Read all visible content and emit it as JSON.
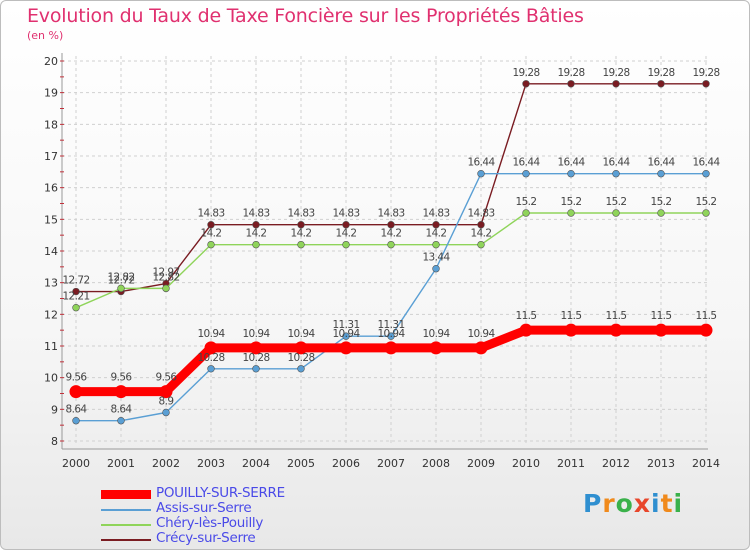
{
  "header": {
    "title": "Evolution du Taux de Taxe Foncière sur les Propriétés Bâties",
    "unit": "(en %)"
  },
  "logo": {
    "letters": [
      "P",
      "r",
      "o",
      "x",
      "i",
      "t",
      "i"
    ],
    "colors": [
      "#2f8fd0",
      "#f08a1c",
      "#3ab14a",
      "#e8462b",
      "#2f8fd0",
      "#f08a1c",
      "#3ab14a"
    ]
  },
  "chart_data": {
    "type": "line",
    "title": "Evolution du Taux de Taxe Foncière sur les Propriétés Bâties",
    "ylabel": "(en %)",
    "xlabel": "",
    "ylim": [
      8,
      20
    ],
    "yticks": [
      8,
      9,
      10,
      11,
      12,
      13,
      14,
      15,
      16,
      17,
      18,
      19,
      20
    ],
    "x": [
      "2000",
      "2001",
      "2002",
      "2003",
      "2004",
      "2005",
      "2006",
      "2007",
      "2008",
      "2009",
      "2010",
      "2011",
      "2012",
      "2013",
      "2014"
    ],
    "series": [
      {
        "name": "Crécy-sur-Serre",
        "color": "#7a1c22",
        "values": [
          12.72,
          12.72,
          12.97,
          14.83,
          14.83,
          14.83,
          14.83,
          14.83,
          14.83,
          14.83,
          19.28,
          19.28,
          19.28,
          19.28,
          19.28
        ],
        "labels": [
          "12.72",
          "12.72",
          "12.97",
          "14.83",
          "14.83",
          "14.83",
          "14.83",
          "14.83",
          "14.83",
          "14.83",
          "19.28",
          "19.28",
          "19.28",
          "19.28",
          "19.28"
        ]
      },
      {
        "name": "Chéry-lès-Pouilly",
        "color": "#8fd45a",
        "values": [
          12.21,
          12.82,
          12.82,
          14.2,
          14.2,
          14.2,
          14.2,
          14.2,
          14.2,
          14.2,
          15.2,
          15.2,
          15.2,
          15.2,
          15.2
        ],
        "labels": [
          "12.21",
          "12.82",
          "12.82",
          "14.2",
          "14.2",
          "14.2",
          "14.2",
          "14.2",
          "14.2",
          "14.2",
          "15.2",
          "15.2",
          "15.2",
          "15.2",
          "15.2"
        ]
      },
      {
        "name": "Assis-sur-Serre",
        "color": "#5a9fd4",
        "values": [
          8.64,
          8.64,
          8.9,
          10.28,
          10.28,
          10.28,
          11.31,
          11.31,
          13.44,
          16.44,
          16.44,
          16.44,
          16.44,
          16.44,
          16.44
        ],
        "labels": [
          "8.64",
          "8.64",
          "8.9",
          "10.28",
          "10.28",
          "10.28",
          "11.31",
          "11.31",
          "13.44",
          "16.44",
          "16.44",
          "16.44",
          "16.44",
          "16.44",
          "16.44"
        ]
      },
      {
        "name": "POUILLY-SUR-SERRE",
        "color": "#ff0000",
        "values": [
          9.56,
          9.56,
          9.56,
          10.94,
          10.94,
          10.94,
          10.94,
          10.94,
          10.94,
          10.94,
          11.5,
          11.5,
          11.5,
          11.5,
          11.5
        ],
        "labels": [
          "9.56",
          "9.56",
          "9.56",
          "10.94",
          "10.94",
          "10.94",
          "10.94",
          "10.94",
          "10.94",
          "10.94",
          "11.5",
          "11.5",
          "11.5",
          "11.5",
          "11.5"
        ]
      }
    ],
    "legend": [
      {
        "name": "POUILLY-SUR-SERRE",
        "color": "#ff0000",
        "text_color": "#4a4ae8"
      },
      {
        "name": "Assis-sur-Serre",
        "color": "#5a9fd4",
        "text_color": "#4a4ae8"
      },
      {
        "name": "Chéry-lès-Pouilly",
        "color": "#8fd45a",
        "text_color": "#4a4ae8"
      },
      {
        "name": "Crécy-sur-Serre",
        "color": "#7a1c22",
        "text_color": "#4a4ae8"
      }
    ]
  }
}
